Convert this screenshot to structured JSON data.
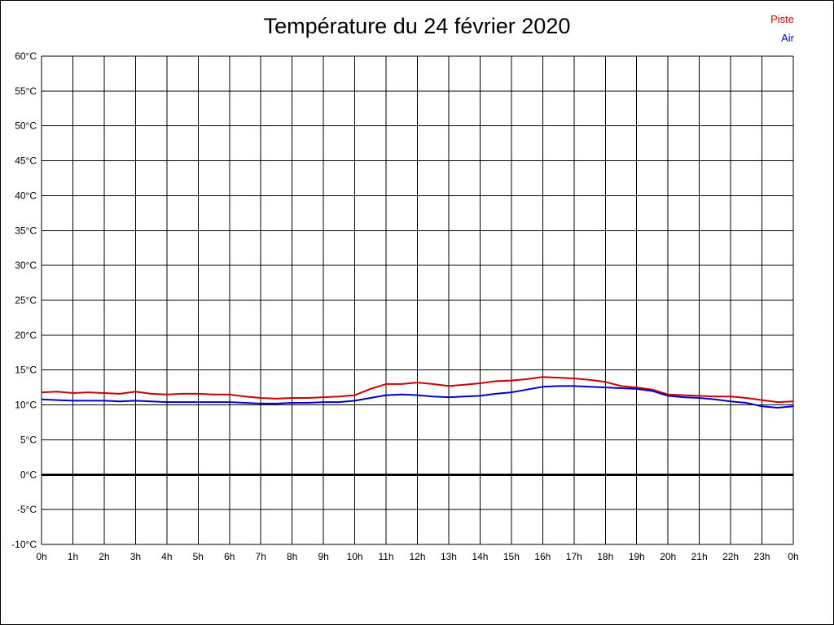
{
  "page": {
    "title": "Température du 24 février 2020"
  },
  "legend": {
    "items": [
      {
        "label": "Piste",
        "color": "#cc0000"
      },
      {
        "label": "Air",
        "color": "#0000cc"
      }
    ]
  },
  "chart_data": {
    "type": "line",
    "title": "Température du 24 février 2020",
    "xlabel": "",
    "ylabel": "",
    "xlim": [
      0,
      24
    ],
    "ylim": [
      -10,
      60
    ],
    "grid": true,
    "legend_position": "top-right",
    "x_ticks": [
      0,
      1,
      2,
      3,
      4,
      5,
      6,
      7,
      8,
      9,
      10,
      11,
      12,
      13,
      14,
      15,
      16,
      17,
      18,
      19,
      20,
      21,
      22,
      23,
      24
    ],
    "x_tick_labels": [
      "0h",
      "1h",
      "2h",
      "3h",
      "4h",
      "5h",
      "6h",
      "7h",
      "8h",
      "9h",
      "10h",
      "11h",
      "12h",
      "13h",
      "14h",
      "15h",
      "16h",
      "17h",
      "18h",
      "19h",
      "20h",
      "21h",
      "22h",
      "23h",
      "0h"
    ],
    "y_ticks": [
      -10,
      -5,
      0,
      5,
      10,
      15,
      20,
      25,
      30,
      35,
      40,
      45,
      50,
      55,
      60
    ],
    "y_tick_labels": [
      "-10°C",
      "-5°C",
      "0°C",
      "5°C",
      "10°C",
      "15°C",
      "20°C",
      "25°C",
      "30°C",
      "35°C",
      "40°C",
      "45°C",
      "50°C",
      "55°C",
      "60°C"
    ],
    "zero_line": {
      "value": 0,
      "color": "#000000",
      "width": 3
    },
    "x_step": 0.5,
    "series": [
      {
        "name": "Piste",
        "color": "#cc0000",
        "values": [
          11.8,
          11.9,
          11.7,
          11.8,
          11.7,
          11.6,
          11.9,
          11.6,
          11.5,
          11.6,
          11.6,
          11.5,
          11.5,
          11.2,
          11.0,
          10.9,
          11.0,
          11.0,
          11.1,
          11.2,
          11.4,
          12.3,
          13.0,
          13.0,
          13.2,
          13.0,
          12.7,
          12.9,
          13.1,
          13.4,
          13.5,
          13.7,
          14.0,
          13.9,
          13.8,
          13.6,
          13.3,
          12.7,
          12.5,
          12.2,
          11.5,
          11.4,
          11.3,
          11.2,
          11.2,
          11.0,
          10.7,
          10.4,
          10.5
        ]
      },
      {
        "name": "Air",
        "color": "#0000cc",
        "values": [
          10.8,
          10.7,
          10.6,
          10.6,
          10.6,
          10.5,
          10.6,
          10.5,
          10.4,
          10.4,
          10.4,
          10.4,
          10.4,
          10.3,
          10.2,
          10.2,
          10.3,
          10.3,
          10.4,
          10.4,
          10.6,
          11.0,
          11.4,
          11.5,
          11.4,
          11.2,
          11.1,
          11.2,
          11.3,
          11.6,
          11.8,
          12.2,
          12.6,
          12.7,
          12.7,
          12.6,
          12.5,
          12.4,
          12.3,
          12.0,
          11.3,
          11.1,
          11.0,
          10.8,
          10.5,
          10.3,
          9.8,
          9.6,
          9.8
        ]
      }
    ]
  }
}
